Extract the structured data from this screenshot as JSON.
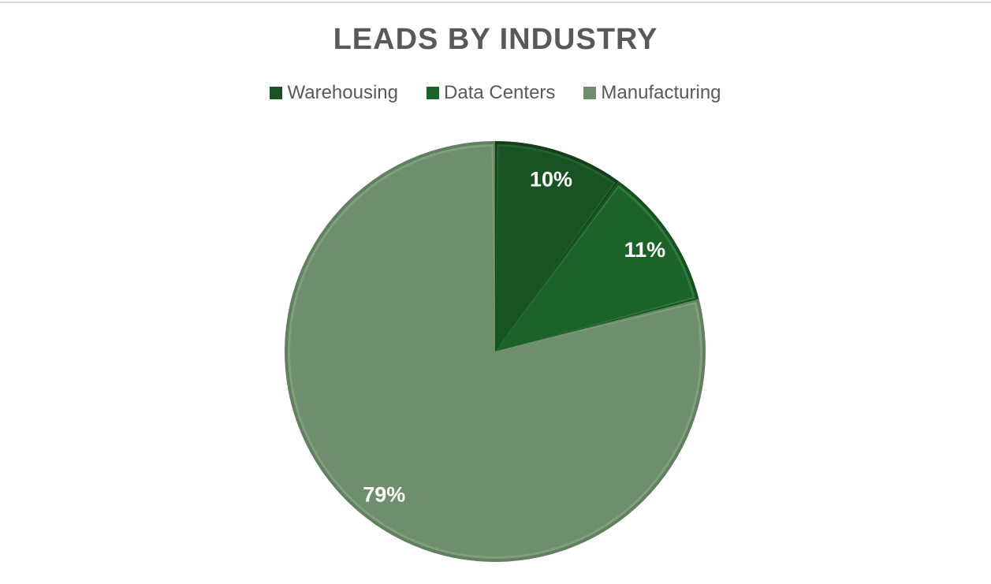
{
  "page": {
    "background": "#FFFFFF",
    "top_border_color": "#D9D9D9",
    "title_color": "#595959",
    "legend_text_color": "#595959"
  },
  "chart_data": {
    "type": "pie",
    "title": "LEADS BY INDUSTRY",
    "legend_position": "top",
    "data_labels": "percent",
    "start_angle_deg": 0,
    "direction": "clockwise",
    "total": 100,
    "label_color": "#FFFFFF",
    "slices": [
      {
        "label": "Warehousing",
        "value": 10,
        "display": "10%",
        "color": "#1A5323",
        "rim_color": "#123E18",
        "highlight_color": "#256030"
      },
      {
        "label": "Data Centers",
        "value": 11,
        "display": "11%",
        "color": "#1C6329",
        "rim_color": "#155021",
        "highlight_color": "#2F7A3A"
      },
      {
        "label": "Manufacturing",
        "value": 79,
        "display": "79%",
        "color": "#6F8E6D",
        "rim_color": "#628060",
        "highlight_color": "#7FA07D"
      }
    ]
  }
}
